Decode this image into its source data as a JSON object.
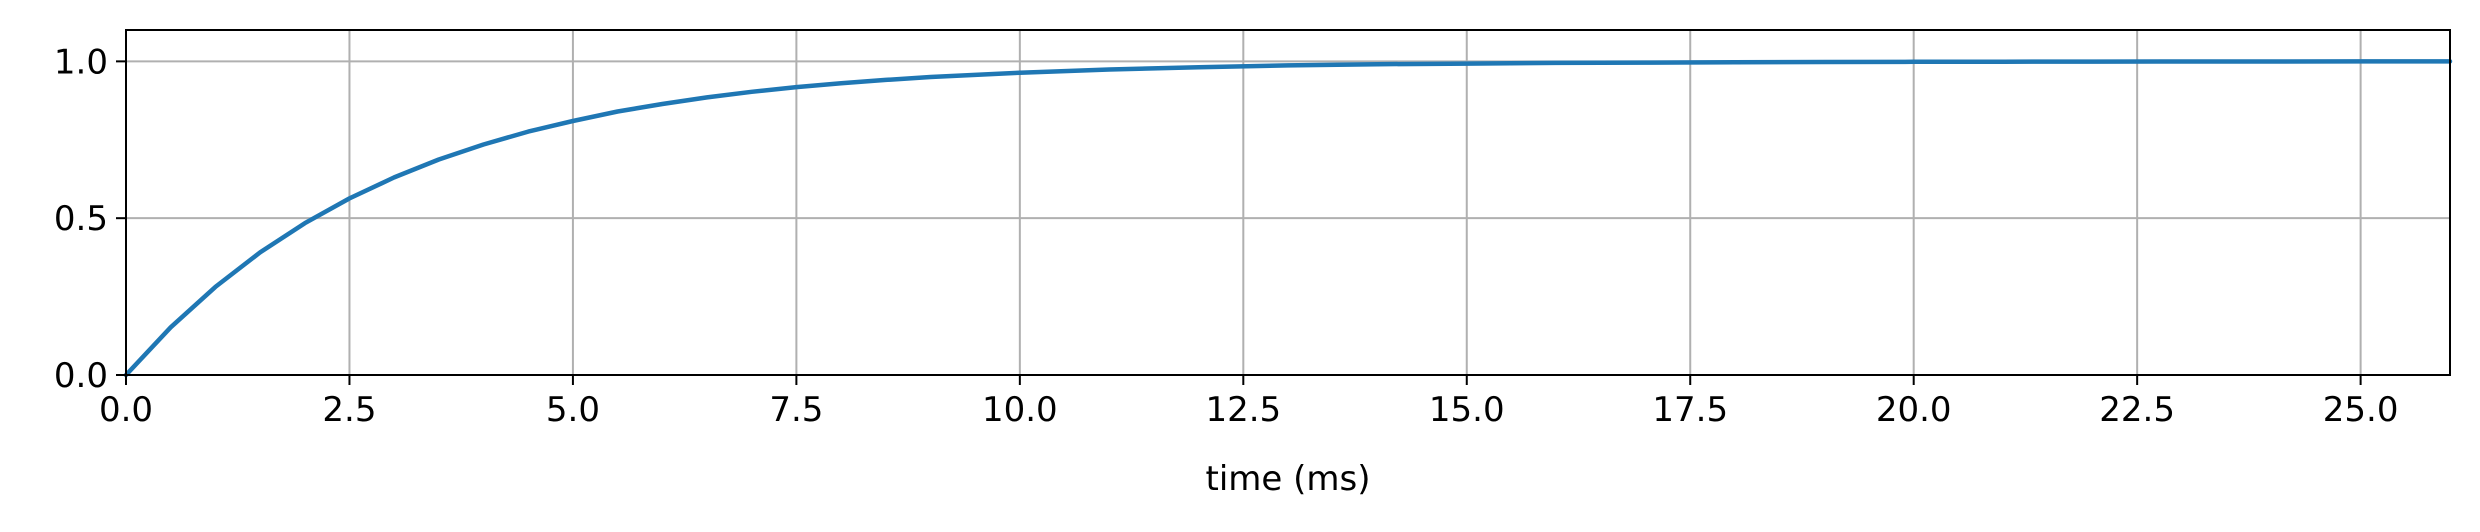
{
  "chart_data": {
    "type": "line",
    "title": "",
    "xlabel": "time (ms)",
    "ylabel": "",
    "xlim": [
      0,
      26
    ],
    "ylim": [
      0,
      1.1
    ],
    "grid": true,
    "line_color": "#1f77b4",
    "grid_color": "#b0b0b0",
    "xticks": [
      0.0,
      2.5,
      5.0,
      7.5,
      10.0,
      12.5,
      15.0,
      17.5,
      20.0,
      22.5,
      25.0
    ],
    "xtick_labels": [
      "0.0",
      "2.5",
      "5.0",
      "7.5",
      "10.0",
      "12.5",
      "15.0",
      "17.5",
      "20.0",
      "22.5",
      "25.0"
    ],
    "yticks": [
      0.0,
      0.5,
      1.0
    ],
    "ytick_labels": [
      "0.0",
      "0.5",
      "1.0"
    ],
    "series": [
      {
        "x": [
          0,
          0.5,
          1,
          1.5,
          2,
          2.5,
          3,
          3.5,
          4,
          4.5,
          5,
          5.5,
          6,
          6.5,
          7,
          7.5,
          8,
          8.5,
          9,
          9.5,
          10,
          11,
          12,
          13,
          14,
          15,
          16,
          17,
          18,
          19,
          20,
          21,
          22,
          23,
          24,
          25,
          26
        ],
        "y": [
          0.0,
          0.152,
          0.281,
          0.391,
          0.484,
          0.563,
          0.63,
          0.687,
          0.735,
          0.776,
          0.81,
          0.84,
          0.864,
          0.885,
          0.903,
          0.918,
          0.93,
          0.941,
          0.95,
          0.957,
          0.964,
          0.974,
          0.981,
          0.987,
          0.991,
          0.993,
          0.995,
          0.996,
          0.997,
          0.998,
          0.9985,
          0.999,
          0.9993,
          0.9995,
          0.9997,
          0.9998,
          0.9999
        ]
      }
    ]
  }
}
